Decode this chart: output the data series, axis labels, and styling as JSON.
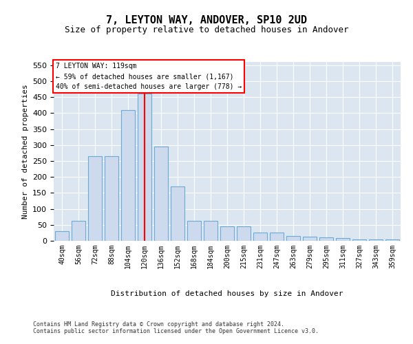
{
  "title_line1": "7, LEYTON WAY, ANDOVER, SP10 2UD",
  "title_line2": "Size of property relative to detached houses in Andover",
  "xlabel": "Distribution of detached houses by size in Andover",
  "ylabel": "Number of detached properties",
  "footer_line1": "Contains HM Land Registry data © Crown copyright and database right 2024.",
  "footer_line2": "Contains public sector information licensed under the Open Government Licence v3.0.",
  "annotation_line1": "7 LEYTON WAY: 119sqm",
  "annotation_line2": "← 59% of detached houses are smaller (1,167)",
  "annotation_line3": "40% of semi-detached houses are larger (778) →",
  "bar_color": "#cdd9ed",
  "bar_edge_color": "#6aaad4",
  "plot_bg_color": "#dce6f1",
  "red_line_x": 5.0,
  "categories": [
    "40sqm",
    "56sqm",
    "72sqm",
    "88sqm",
    "104sqm",
    "120sqm",
    "136sqm",
    "152sqm",
    "168sqm",
    "184sqm",
    "200sqm",
    "215sqm",
    "231sqm",
    "247sqm",
    "263sqm",
    "279sqm",
    "295sqm",
    "311sqm",
    "327sqm",
    "343sqm",
    "359sqm"
  ],
  "values": [
    30,
    62,
    265,
    265,
    410,
    460,
    295,
    170,
    62,
    62,
    45,
    45,
    25,
    25,
    15,
    12,
    10,
    8,
    5,
    5,
    5
  ],
  "ylim": [
    0,
    560
  ],
  "yticks": [
    0,
    50,
    100,
    150,
    200,
    250,
    300,
    350,
    400,
    450,
    500,
    550
  ]
}
